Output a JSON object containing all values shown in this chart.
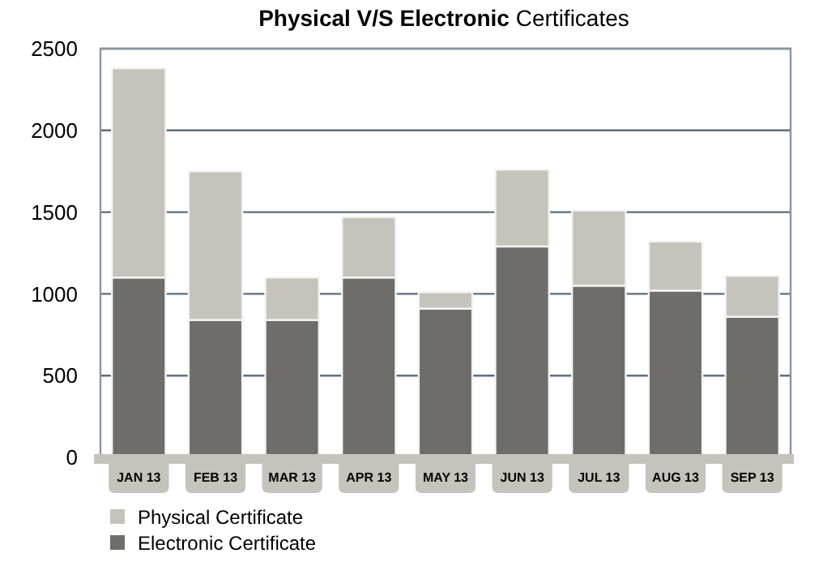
{
  "chart_data": {
    "type": "bar",
    "title": "Physical V/S Electronic Certificates",
    "stacked": true,
    "categories": [
      "JAN 13",
      "FEB 13",
      "MAR 13",
      "APR 13",
      "MAY 13",
      "JUN 13",
      "JUL 13",
      "AUG 13",
      "SEP 13"
    ],
    "series": [
      {
        "name": "Electronic Certificate",
        "color": "#6e6d6a",
        "values": [
          1100,
          840,
          840,
          1100,
          910,
          1290,
          1050,
          1020,
          860
        ]
      },
      {
        "name": "Physical Certificate",
        "color": "#c6c3bc",
        "values": [
          1280,
          910,
          260,
          370,
          100,
          470,
          460,
          300,
          250
        ]
      }
    ],
    "ylim": [
      0,
      2500
    ],
    "yticks": [
      0,
      500,
      1000,
      1500,
      2000,
      2500
    ],
    "grid": "y",
    "legend": "bottom left"
  }
}
